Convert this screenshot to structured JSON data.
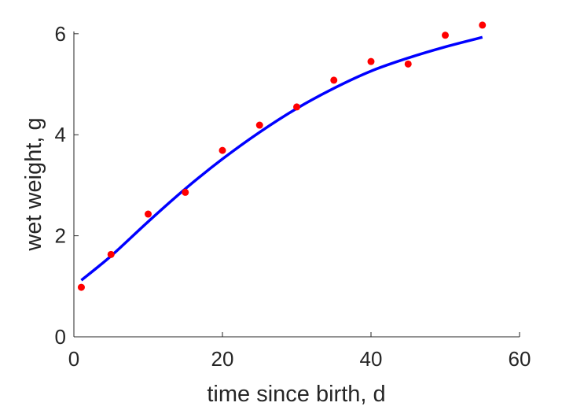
{
  "chart_data": {
    "type": "scatter",
    "xlabel": "time since birth, d",
    "ylabel": "wet weight, g",
    "xlim": [
      0,
      60
    ],
    "ylim": [
      0,
      6.2
    ],
    "xticks": [
      0,
      20,
      40,
      60
    ],
    "yticks": [
      0,
      2,
      4,
      6
    ],
    "grid": false,
    "colors": {
      "points": "#ff0000",
      "fit": "#0000ff",
      "axes": "#262626"
    },
    "series": [
      {
        "type": "scatter",
        "x": [
          1,
          5,
          10,
          15,
          20,
          25,
          30,
          35,
          40,
          45,
          50,
          55
        ],
        "y": [
          0.98,
          1.63,
          2.43,
          2.86,
          3.69,
          4.19,
          4.55,
          5.08,
          5.45,
          5.4,
          5.97,
          6.17
        ]
      },
      {
        "type": "line",
        "x": [
          1,
          5,
          10,
          15,
          20,
          25,
          30,
          35,
          40,
          45,
          50,
          55
        ],
        "y": [
          1.12,
          1.6,
          2.28,
          2.93,
          3.52,
          4.05,
          4.52,
          4.92,
          5.26,
          5.52,
          5.74,
          5.93
        ]
      }
    ]
  }
}
